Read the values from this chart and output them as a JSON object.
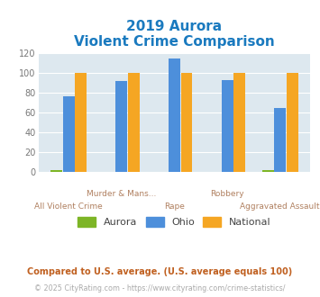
{
  "title_line1": "2019 Aurora",
  "title_line2": "Violent Crime Comparison",
  "categories": [
    "All Violent Crime",
    "Murder & Mans...",
    "Rape",
    "Robbery",
    "Aggravated Assault"
  ],
  "aurora": [
    2,
    0,
    0,
    0,
    2
  ],
  "ohio": [
    77,
    92,
    115,
    93,
    65
  ],
  "national": [
    100,
    100,
    100,
    100,
    100
  ],
  "aurora_color": "#7db526",
  "ohio_color": "#4d8fdb",
  "national_color": "#f5a623",
  "bg_color": "#dde8ef",
  "title_color": "#1a7abf",
  "xlabel_color": "#b08060",
  "ylabel_color": "#777777",
  "ylim": [
    0,
    120
  ],
  "yticks": [
    0,
    20,
    40,
    60,
    80,
    100,
    120
  ],
  "footnote1": "Compared to U.S. average. (U.S. average equals 100)",
  "footnote2": "© 2025 CityRating.com - https://www.cityrating.com/crime-statistics/",
  "footnote1_color": "#c06020",
  "footnote2_color": "#aaaaaa",
  "footnote2_link_color": "#4d8fdb",
  "legend_labels": [
    "Aurora",
    "Ohio",
    "National"
  ],
  "label_row1": [
    "",
    "Murder & Mans...",
    "",
    "Robbery",
    ""
  ],
  "label_row2": [
    "All Violent Crime",
    "",
    "Rape",
    "",
    "Aggravated Assault"
  ]
}
